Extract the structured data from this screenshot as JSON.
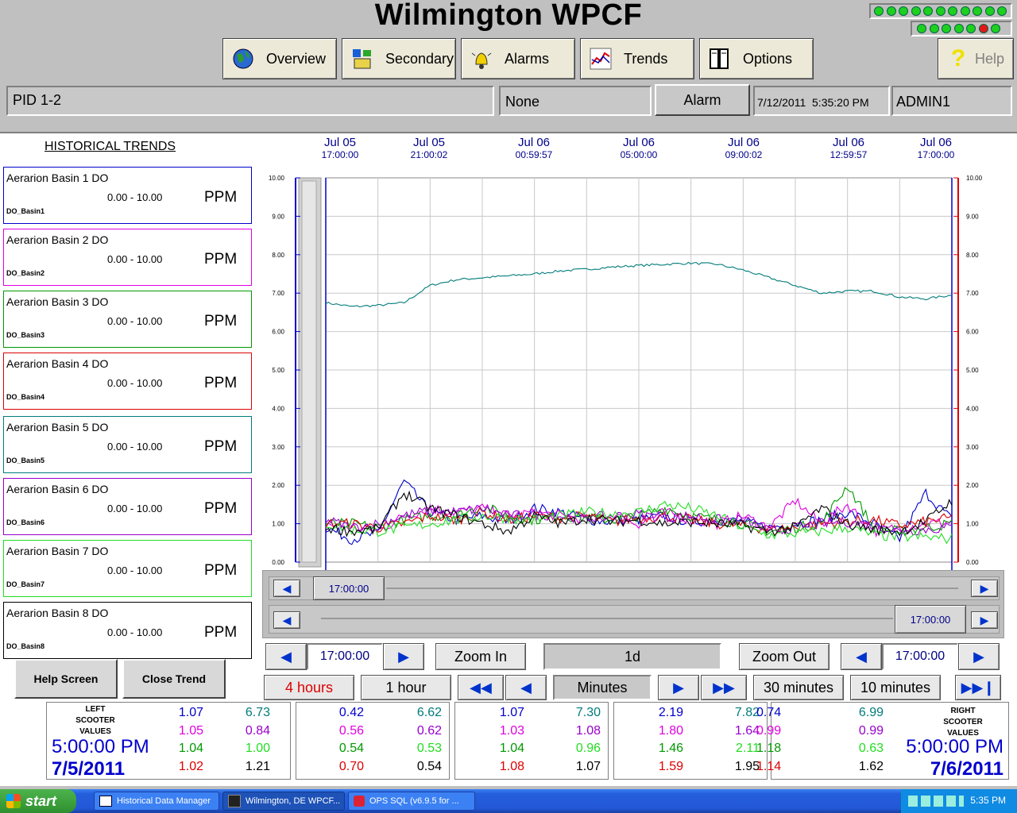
{
  "header": {
    "title": "Wilmington WPCF",
    "nav": [
      {
        "label": "Overview",
        "icon": "globe-icon"
      },
      {
        "label": "Secondary",
        "icon": "equipment-icon"
      },
      {
        "label": "Alarms",
        "icon": "bell-icon"
      },
      {
        "label": "Trends",
        "icon": "trend-chart-icon"
      },
      {
        "label": "Options",
        "icon": "binders-icon"
      }
    ],
    "help_label": "Help",
    "help_glyph": "?"
  },
  "status_bar": {
    "screen": "PID 1-2",
    "alarm_state": "None",
    "alarm_label": "Alarm",
    "datetime": "7/12/2011  5:35:20 PM",
    "user": "ADMIN1"
  },
  "trends": {
    "heading": "HISTORICAL TRENDS",
    "tags": [
      {
        "name": "Aerarion Basin 1 DO",
        "range": "0.00 -  10.00",
        "unit": "PPM",
        "tag": "DO_Basin1",
        "color": "#0000cc"
      },
      {
        "name": "Aerarion Basin 2 DO",
        "range": "0.00 -  10.00",
        "unit": "PPM",
        "tag": "DO_Basin2",
        "color": "#e000e0"
      },
      {
        "name": "Aerarion Basin 3 DO",
        "range": "0.00 -  10.00",
        "unit": "PPM",
        "tag": "DO_Basin3",
        "color": "#009900"
      },
      {
        "name": "Aerarion Basin 4 DO",
        "range": "0.00 -  10.00",
        "unit": "PPM",
        "tag": "DO_Basin4",
        "color": "#dd0000"
      },
      {
        "name": "Aerarion Basin 5 DO",
        "range": "0.00 -  10.00",
        "unit": "PPM",
        "tag": "DO_Basin5",
        "color": "#007b7b"
      },
      {
        "name": "Aerarion Basin 6 DO",
        "range": "0.00 -  10.00",
        "unit": "PPM",
        "tag": "DO_Basin6",
        "color": "#9900cc"
      },
      {
        "name": "Aerarion Basin 7 DO",
        "range": "0.00 -  10.00",
        "unit": "PPM",
        "tag": "DO_Basin7",
        "color": "#22dd22"
      },
      {
        "name": "Aerarion Basin 8 DO",
        "range": "0.00 -  10.00",
        "unit": "PPM",
        "tag": "DO_Basin8",
        "color": "#000000"
      }
    ],
    "buttons": {
      "help": "Help Screen",
      "close": "Close Trend"
    }
  },
  "chart_data": {
    "type": "line",
    "x_labels": [
      {
        "date": "Jul 05",
        "time": "17:00:00"
      },
      {
        "date": "Jul 05",
        "time": "21:00:02"
      },
      {
        "date": "Jul 06",
        "time": "00:59:57"
      },
      {
        "date": "Jul 06",
        "time": "05:00:00"
      },
      {
        "date": "Jul 06",
        "time": "09:00:02"
      },
      {
        "date": "Jul 06",
        "time": "12:59:57"
      },
      {
        "date": "Jul 06",
        "time": "17:00:00"
      }
    ],
    "y_ticks": [
      "10.00",
      "9.00",
      "8.00",
      "7.00",
      "6.00",
      "5.00",
      "4.00",
      "3.00",
      "2.00",
      "1.00",
      "0.00"
    ],
    "ylim": [
      0,
      10
    ],
    "x_hours": [
      0,
      1,
      2,
      3,
      4,
      5,
      6,
      7,
      8,
      9,
      10,
      11,
      12,
      13,
      14,
      15,
      16,
      17,
      18,
      19,
      20,
      21,
      22,
      23,
      24
    ],
    "series": [
      {
        "name": "DO_Basin5",
        "color": "#007b7b",
        "values": [
          6.75,
          6.65,
          6.68,
          6.75,
          7.2,
          7.35,
          7.4,
          7.45,
          7.5,
          7.58,
          7.62,
          7.68,
          7.72,
          7.75,
          7.78,
          7.75,
          7.6,
          7.4,
          7.2,
          7.0,
          7.05,
          7.05,
          6.9,
          6.85,
          6.95
        ]
      },
      {
        "name": "DO_Basin1",
        "color": "#0000cc",
        "values": [
          0.9,
          0.6,
          0.75,
          2.1,
          1.3,
          1.1,
          1.2,
          1.05,
          1.4,
          1.3,
          1.1,
          1.05,
          1.1,
          1.2,
          1.05,
          1.1,
          1.05,
          0.9,
          1.0,
          1.1,
          1.3,
          1.0,
          0.6,
          1.8,
          1.1
        ]
      },
      {
        "name": "DO_Basin2",
        "color": "#e000e0",
        "values": [
          1.0,
          0.9,
          0.8,
          1.2,
          1.4,
          1.3,
          1.4,
          1.2,
          1.3,
          1.2,
          1.1,
          1.2,
          1.0,
          1.3,
          1.1,
          1.0,
          1.2,
          0.9,
          1.6,
          1.0,
          1.5,
          0.8,
          0.9,
          1.0,
          1.05
        ]
      },
      {
        "name": "DO_Basin3",
        "color": "#009900",
        "values": [
          1.0,
          1.0,
          0.9,
          1.1,
          1.2,
          1.2,
          1.45,
          1.2,
          1.1,
          1.2,
          1.15,
          1.1,
          1.2,
          1.4,
          1.2,
          1.1,
          1.0,
          0.8,
          0.9,
          1.0,
          2.0,
          0.9,
          0.8,
          0.9,
          1.0
        ]
      },
      {
        "name": "DO_Basin4",
        "color": "#dd0000",
        "values": [
          1.0,
          1.0,
          0.9,
          1.0,
          1.2,
          1.1,
          1.3,
          1.1,
          1.2,
          1.15,
          1.2,
          1.05,
          1.15,
          1.2,
          1.1,
          1.0,
          0.95,
          0.85,
          0.9,
          1.0,
          1.05,
          1.1,
          0.95,
          1.05,
          1.15
        ]
      },
      {
        "name": "DO_Basin6",
        "color": "#9900cc",
        "values": [
          1.1,
          0.9,
          1.0,
          1.2,
          1.35,
          1.3,
          1.4,
          1.2,
          1.25,
          1.2,
          1.15,
          1.2,
          1.25,
          1.15,
          1.2,
          1.1,
          1.1,
          0.8,
          0.9,
          1.0,
          1.05,
          0.95,
          0.8,
          0.85,
          0.9
        ]
      },
      {
        "name": "DO_Basin7",
        "color": "#22dd22",
        "values": [
          1.0,
          0.85,
          0.8,
          0.9,
          1.0,
          1.1,
          1.2,
          1.15,
          1.1,
          1.2,
          1.3,
          1.25,
          1.3,
          1.5,
          1.4,
          1.2,
          0.9,
          0.7,
          0.75,
          0.8,
          0.9,
          0.7,
          0.65,
          0.65,
          0.6
        ]
      },
      {
        "name": "DO_Basin8",
        "color": "#000000",
        "values": [
          0.9,
          0.8,
          0.85,
          1.8,
          1.4,
          1.2,
          1.0,
          0.8,
          1.2,
          1.0,
          1.15,
          1.05,
          1.1,
          1.0,
          1.05,
          1.0,
          0.95,
          0.8,
          0.9,
          1.4,
          1.0,
          0.85,
          0.8,
          1.05,
          1.6
        ]
      }
    ]
  },
  "scroll": {
    "left_time": "17:00:00",
    "right_time": "17:00:00"
  },
  "controls": {
    "left_time": "17:00:00",
    "right_time": "17:00:00",
    "zoom_in": "Zoom In",
    "zoom_out": "Zoom Out",
    "span": "1d",
    "hours4": "4 hours",
    "hour1": "1 hour",
    "minutes": "Minutes",
    "min30": "30 minutes",
    "min10": "10 minutes"
  },
  "scooter": {
    "left_title": "LEFT\nSCOOTER\nVALUES",
    "right_title": "RIGHT\nSCOOTER\nVALUES",
    "left_time": "5:00:00 PM",
    "left_date": "7/5/2011",
    "right_time": "5:00:00 PM",
    "right_date": "7/6/2011",
    "panels": [
      {
        "vals": [
          [
            "1.07",
            "6.73"
          ],
          [
            "1.05",
            "0.84"
          ],
          [
            "1.04",
            "1.00"
          ],
          [
            "1.02",
            "1.21"
          ]
        ]
      },
      {
        "vals": [
          [
            "0.42",
            "6.62"
          ],
          [
            "0.56",
            "0.62"
          ],
          [
            "0.54",
            "0.53"
          ],
          [
            "0.70",
            "0.54"
          ]
        ]
      },
      {
        "vals": [
          [
            "1.07",
            "7.30"
          ],
          [
            "1.03",
            "1.08"
          ],
          [
            "1.04",
            "0.96"
          ],
          [
            "1.08",
            "1.07"
          ]
        ]
      },
      {
        "vals": [
          [
            "2.19",
            "7.82"
          ],
          [
            "1.80",
            "1.64"
          ],
          [
            "1.46",
            "2.11"
          ],
          [
            "1.59",
            "1.95"
          ]
        ]
      },
      {
        "vals": [
          [
            "0.74",
            "6.99"
          ],
          [
            "0.99",
            "0.99"
          ],
          [
            "1.18",
            "0.63"
          ],
          [
            "1.14",
            "1.62"
          ]
        ]
      }
    ]
  },
  "taskbar": {
    "start": "start",
    "items": [
      "Historical Data Manager",
      "Wilmington, DE WPCF...",
      "OPS SQL (v6.9.5 for ..."
    ],
    "clock": "5:35 PM"
  }
}
